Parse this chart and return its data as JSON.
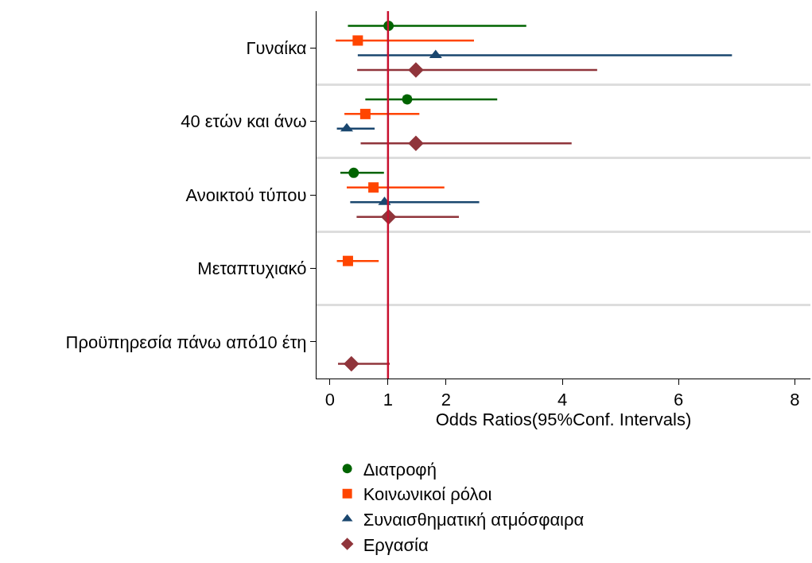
{
  "chart_data": {
    "type": "scatter",
    "orientation": "horizontal",
    "xlabel": "Odds Ratios(95%Conf. Intervals)",
    "categories": [
      "Γυναίκα",
      "40 ετών και άνω",
      "Ανοικτού τύπου",
      "Μεταπτυχιακό",
      "Προϋπηρεσία πάνω από10 έτη"
    ],
    "xlim": [
      -0.23,
      8.27
    ],
    "xticks": [
      0,
      1,
      2,
      4,
      6,
      8
    ],
    "grid": "y",
    "legend": "bottom",
    "ref_lines": [
      {
        "axis": "x",
        "value": 1,
        "color": "#c8102e"
      }
    ],
    "series": [
      {
        "name": "Διατροφή",
        "color": "#006400",
        "marker": "circle",
        "values": [
          1.01,
          1.33,
          0.41,
          null,
          null
        ],
        "errors": [
          [
            0.31,
            3.38
          ],
          [
            0.61,
            2.88
          ],
          [
            0.18,
            0.93
          ],
          null,
          null
        ]
      },
      {
        "name": "Κοινωνικοί ρόλοι",
        "color": "#ff4500",
        "marker": "square",
        "values": [
          0.48,
          0.61,
          0.75,
          0.31,
          null
        ],
        "errors": [
          [
            0.1,
            2.48
          ],
          [
            0.25,
            1.54
          ],
          [
            0.29,
            1.97
          ],
          [
            0.12,
            0.84
          ],
          null
        ]
      },
      {
        "name": "Συναισθηματική ατμόσφαιρα",
        "color": "#1a476f",
        "marker": "triangle",
        "values": [
          1.82,
          0.29,
          0.94,
          null,
          null
        ],
        "errors": [
          [
            0.48,
            6.92
          ],
          [
            0.12,
            0.77
          ],
          [
            0.35,
            2.57
          ],
          null,
          null
        ]
      },
      {
        "name": "Εργασία",
        "color": "#90353b",
        "marker": "diamond",
        "values": [
          1.48,
          1.48,
          1.01,
          null,
          0.37
        ],
        "errors": [
          [
            0.47,
            4.6
          ],
          [
            0.53,
            4.16
          ],
          [
            0.46,
            2.22
          ],
          null,
          [
            0.14,
            1.03
          ]
        ]
      }
    ]
  }
}
